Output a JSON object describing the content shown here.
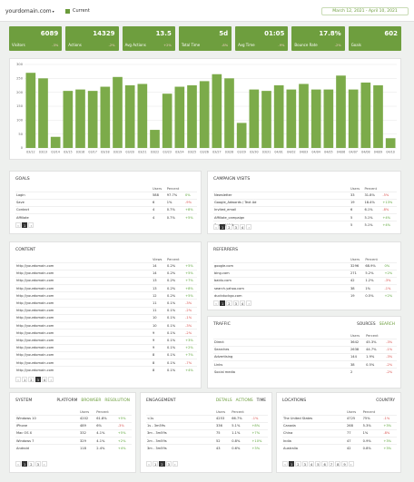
{
  "header": {
    "domain": "yourdomain.com",
    "current_label": "Current",
    "date_range": "March 12, 2021 - April 10, 2021"
  },
  "stats": [
    {
      "label": "Visitors",
      "value": "6089",
      "change": "-3%"
    },
    {
      "label": "Actions",
      "value": "14329",
      "change": "-2%"
    },
    {
      "label": "Avg Actions",
      "value": "13.5",
      "change": "+2%"
    },
    {
      "label": "Total Time",
      "value": "5d",
      "change": "-8%"
    },
    {
      "label": "Avg Time",
      "value": "01:05",
      "change": "-9%"
    },
    {
      "label": "Bounce Rate",
      "value": "17.8%",
      "change": "-2%"
    },
    {
      "label": "Goals",
      "value": "602",
      "change": ""
    }
  ],
  "chart_data": {
    "type": "bar",
    "categories": [
      "03/12",
      "03/13",
      "03/14",
      "03/15",
      "03/16",
      "03/17",
      "03/18",
      "03/19",
      "03/20",
      "03/21",
      "03/22",
      "03/23",
      "03/24",
      "03/25",
      "03/26",
      "03/27",
      "03/28",
      "03/29",
      "03/30",
      "03/31",
      "04/01",
      "04/02",
      "04/03",
      "04/04",
      "04/05",
      "04/06",
      "04/07",
      "04/08",
      "04/09",
      "04/10"
    ],
    "values": [
      270,
      250,
      40,
      205,
      210,
      205,
      220,
      255,
      225,
      230,
      65,
      195,
      220,
      225,
      240,
      265,
      250,
      90,
      210,
      205,
      225,
      210,
      230,
      210,
      210,
      260,
      210,
      235,
      225,
      35
    ],
    "ylim": [
      0,
      300
    ],
    "yticks": [
      "0",
      "50",
      "100",
      "150",
      "200",
      "250",
      "300"
    ],
    "grid": true
  },
  "goals": {
    "title": "GOALS",
    "columns": [
      "",
      "Users",
      "Percent",
      ""
    ],
    "rows": [
      [
        "Login",
        "588",
        "97.7%",
        "0%"
      ],
      [
        "Save",
        "6",
        "1%",
        "-9%"
      ],
      [
        "Contact",
        "4",
        "0.7%",
        "+8%"
      ],
      [
        "Affiliate",
        "4",
        "0.7%",
        "+5%"
      ]
    ],
    "pager": [
      "‹",
      "1",
      "›"
    ]
  },
  "campaign": {
    "title": "CAMPAIGN VISITS",
    "columns": [
      "",
      "Users",
      "Percent",
      ""
    ],
    "rows": [
      [
        "Newsletter",
        "33",
        "31.8%",
        "-5%"
      ],
      [
        "Google_Adwords / Text Ad",
        "19",
        "18.4%",
        "+13%"
      ],
      [
        "Invited_email",
        "6",
        "6.1%",
        "-8%"
      ],
      [
        "Affiliate_campaign",
        "5",
        "5.1%",
        "+4%"
      ],
      [
        "Social / Video",
        "5",
        "5.1%",
        "+4%"
      ]
    ],
    "pager": [
      "‹",
      "1",
      "2",
      "3",
      "4",
      "›"
    ]
  },
  "content": {
    "title": "CONTENT",
    "columns": [
      "",
      "Views",
      "Percent",
      ""
    ],
    "rows": [
      [
        "http://yourdomain.com",
        "14",
        "0.2%",
        "+5%"
      ],
      [
        "http://yourdomain.com",
        "14",
        "0.2%",
        "+5%"
      ],
      [
        "http://yourdomain.com",
        "13",
        "0.2%",
        "+7%"
      ],
      [
        "http://yourdomain.com",
        "13",
        "0.2%",
        "+8%"
      ],
      [
        "http://yourdomain.com",
        "12",
        "0.2%",
        "+5%"
      ],
      [
        "http://yourdomain.com",
        "11",
        "0.1%",
        "-3%"
      ],
      [
        "http://yourdomain.com",
        "11",
        "0.1%",
        "-2%"
      ],
      [
        "http://yourdomain.com",
        "10",
        "0.1%",
        "-1%"
      ],
      [
        "http://yourdomain.com",
        "10",
        "0.1%",
        "-3%"
      ],
      [
        "http://yourdomain.com",
        "9",
        "0.1%",
        "-2%"
      ],
      [
        "http://yourdomain.com",
        "9",
        "0.1%",
        "+3%"
      ],
      [
        "http://yourdomain.com",
        "9",
        "0.1%",
        "+2%"
      ],
      [
        "http://yourdomain.com",
        "8",
        "0.1%",
        "+7%"
      ],
      [
        "http://yourdomain.com",
        "8",
        "0.1%",
        "-7%"
      ],
      [
        "http://yourdomain.com",
        "8",
        "0.1%",
        "+4%"
      ]
    ],
    "pager": [
      "‹",
      "1",
      "2",
      "3",
      "4",
      "›"
    ]
  },
  "referrers": {
    "title": "REFERRERS",
    "columns": [
      "",
      "Users",
      "Percent",
      ""
    ],
    "rows": [
      [
        "google.com",
        "3296",
        "68.9%",
        "0%"
      ],
      [
        "bing.com",
        "271",
        "5.2%",
        "+2%"
      ],
      [
        "baidu.com",
        "42",
        "1.2%",
        "-3%"
      ],
      [
        "search.yahoo.com",
        "38",
        "1%",
        "-1%"
      ],
      [
        "duckduckgo.com",
        "19",
        "0.5%",
        "+2%"
      ]
    ],
    "pager": [
      "‹",
      "1",
      "2",
      "3",
      "4",
      "›"
    ]
  },
  "traffic": {
    "title": "TRAFFIC",
    "tabs": [
      "SOURCES",
      "SEARCH"
    ],
    "columns": [
      "",
      "Users",
      "Percent",
      ""
    ],
    "rows": [
      [
        "Direct",
        "3642",
        "45.3%",
        "-3%"
      ],
      [
        "Searches",
        "2638",
        "44.7%",
        "-1%"
      ],
      [
        "Advertising",
        "144",
        "1.9%",
        "-3%"
      ],
      [
        "Links",
        "38",
        "0.5%",
        "-2%"
      ],
      [
        "Social media",
        "2",
        "",
        "-2%"
      ]
    ]
  },
  "system": {
    "title": "SYSTEM",
    "tabs": [
      "PLATFORM",
      "BROWSER",
      "RESOLUTION"
    ],
    "columns": [
      "",
      "Users",
      "Percent",
      ""
    ],
    "rows": [
      [
        "Windows 10",
        "4202",
        "61.8%",
        "+5%"
      ],
      [
        "iPhone",
        "489",
        "6%",
        "-3%"
      ],
      [
        "Mac OS X",
        "332",
        "4.1%",
        "+5%"
      ],
      [
        "Windows 7",
        "329",
        "4.1%",
        "+2%"
      ],
      [
        "Android",
        "118",
        "2.4%",
        "+4%"
      ]
    ],
    "pager": [
      "‹",
      "1",
      "2",
      "3",
      "›"
    ]
  },
  "engagement": {
    "title": "ENGAGEMENT",
    "tabs": [
      "DETAILS",
      "ACTIONS",
      "TIME"
    ],
    "columns": [
      "",
      "Users",
      "Percent",
      ""
    ],
    "rows": [
      [
        "<1s",
        "4253",
        "66.7%",
        "-1%"
      ],
      [
        "1s - 3m59s",
        "336",
        "5.1%",
        "+8%"
      ],
      [
        "3m - 3m59s",
        "75",
        "1.1%",
        "+7%"
      ],
      [
        "2m - 3m59s",
        "52",
        "0.8%",
        "+10%"
      ],
      [
        "3m - 3m59s",
        "43",
        "0.6%",
        "+3%"
      ]
    ],
    "pager": [
      "‹",
      "1",
      "2",
      "3",
      "›"
    ]
  },
  "locations": {
    "title": "LOCATIONS",
    "tabs": [
      "COUNTRY"
    ],
    "columns": [
      "",
      "Users",
      "Percent",
      ""
    ],
    "rows": [
      [
        "The United States",
        "4725",
        "75%",
        "-1%"
      ],
      [
        "Canada",
        "268",
        "5.3%",
        "+3%"
      ],
      [
        "China",
        "77",
        "1%",
        "-8%"
      ],
      [
        "India",
        "47",
        "0.9%",
        "+3%"
      ],
      [
        "Australia",
        "42",
        "0.8%",
        "+3%"
      ]
    ],
    "pager": [
      "‹",
      "1",
      "2",
      "3",
      "4",
      "5",
      "6",
      "7",
      "8",
      "9",
      "›"
    ]
  }
}
